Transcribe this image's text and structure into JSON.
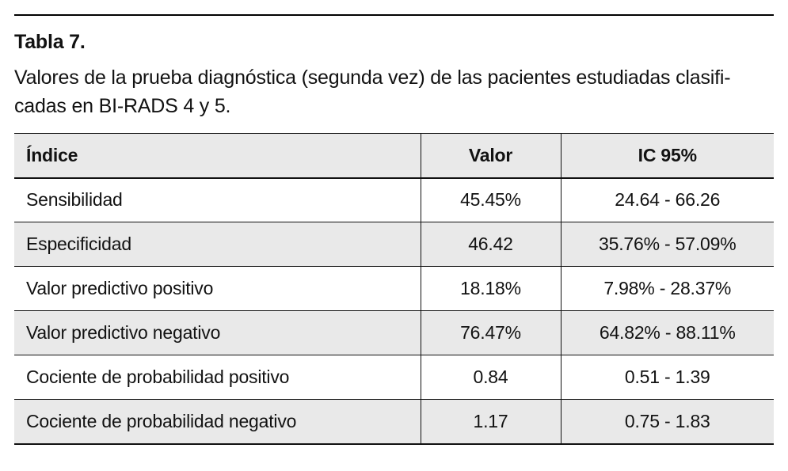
{
  "header": {
    "title": "Tabla 7.",
    "caption_line1": "Valores de la prueba diagnóstica (segunda vez) de las pacientes estudiadas clasifi-",
    "caption_line2": "cadas en BI-RADS 4 y 5."
  },
  "table": {
    "columns": [
      "Índice",
      "Valor",
      "IC 95%"
    ],
    "rows": [
      {
        "indice": "Sensibilidad",
        "valor": "45.45%",
        "ic": "24.64 - 66.26"
      },
      {
        "indice": "Especificidad",
        "valor": "46.42",
        "ic": "35.76% - 57.09%"
      },
      {
        "indice": "Valor predictivo positivo",
        "valor": "18.18%",
        "ic": "7.98% - 28.37%"
      },
      {
        "indice": "Valor predictivo negativo",
        "valor": "76.47%",
        "ic": "64.82% - 88.11%"
      },
      {
        "indice": "Cociente de probabilidad positivo",
        "valor": "0.84",
        "ic": "0.51 - 1.39"
      },
      {
        "indice": "Cociente de probabilidad negativo",
        "valor": "1.17",
        "ic": "0.75 - 1.83"
      }
    ]
  },
  "colors": {
    "row_alt_bg": "#e9e9e9",
    "rule": "#000000",
    "text": "#121212"
  }
}
